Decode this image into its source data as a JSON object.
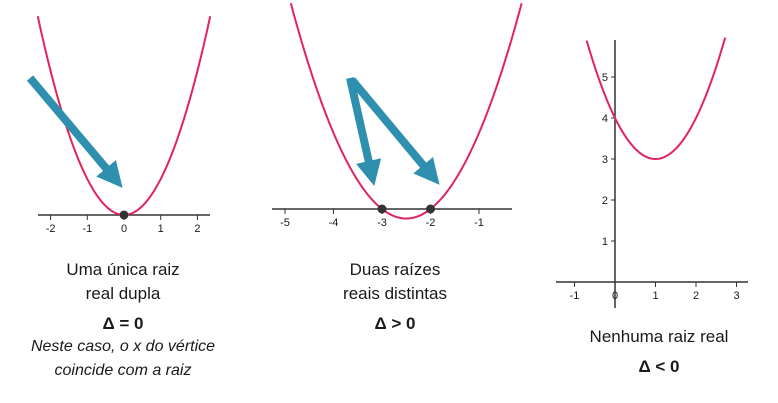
{
  "charts": [
    {
      "caption_line1": "Uma única raiz",
      "caption_line2": "real dupla",
      "delta": "Δ = 0",
      "note_line1": "Neste caso, o x do vértice",
      "note_line2": "coincide com a raiz"
    },
    {
      "caption_line1": "Duas raízes",
      "caption_line2": "reais distintas",
      "delta": "Δ > 0"
    },
    {
      "caption_line1": "Nenhuma raiz real",
      "delta": "Δ < 0"
    }
  ],
  "chart_data": [
    {
      "type": "line",
      "title": "",
      "curve": "y = x^2",
      "x_ticks": [
        "-2",
        "-1",
        "0",
        "1",
        "2"
      ],
      "xlim": [
        -2.4,
        2.4
      ],
      "roots": [
        0
      ],
      "colors": {
        "curve": "#e0245e",
        "arrow": "#2e8fae",
        "axis": "#333333"
      }
    },
    {
      "type": "line",
      "title": "",
      "curve": "y = (x + 2.5)^2 - 0.25",
      "x_ticks": [
        "-5",
        "-4",
        "-3",
        "-2",
        "-1"
      ],
      "xlim": [
        -5.3,
        -0.3
      ],
      "roots": [
        -3,
        -2
      ],
      "colors": {
        "curve": "#e0245e",
        "arrow": "#2e8fae",
        "axis": "#333333"
      }
    },
    {
      "type": "line",
      "title": "",
      "curve": "y = (x - 1)^2 + 3",
      "x_ticks": [
        "-1",
        "0",
        "1",
        "2",
        "3"
      ],
      "y_ticks": [
        "1",
        "2",
        "3",
        "4",
        "5"
      ],
      "xlim": [
        -1.3,
        3.3
      ],
      "ylim": [
        -0.5,
        5.8
      ],
      "vertex": [
        1,
        3
      ],
      "roots": [],
      "colors": {
        "curve": "#e0245e",
        "axis": "#333333"
      }
    }
  ]
}
